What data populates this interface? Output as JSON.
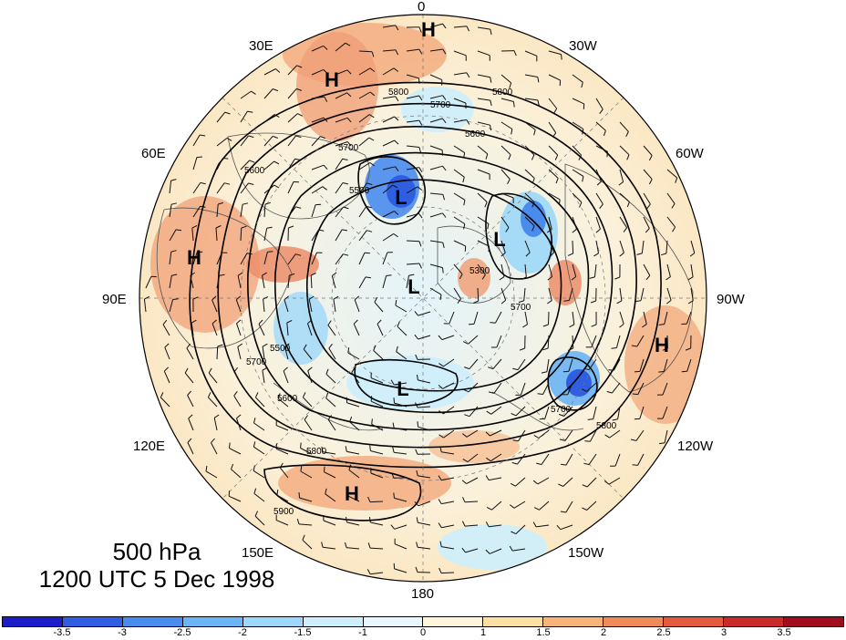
{
  "title": {
    "level": "500 hPa",
    "time": "1200 UTC 5 Dec 1998"
  },
  "longitude_labels": {
    "lon_0": "0",
    "lon_30w": "30W",
    "lon_60w": "60W",
    "lon_90w": "90W",
    "lon_120w": "120W",
    "lon_150w": "150W",
    "lon_180": "180",
    "lon_150e": "150E",
    "lon_120e": "120E",
    "lon_90e": "90E",
    "lon_60e": "60E",
    "lon_30e": "30E"
  },
  "pressure_centers": [
    {
      "label": "H"
    },
    {
      "label": "H"
    },
    {
      "label": "H"
    },
    {
      "label": "H"
    },
    {
      "label": "H"
    },
    {
      "label": "L"
    },
    {
      "label": "L"
    },
    {
      "label": "L"
    },
    {
      "label": "L"
    }
  ],
  "contour_labels": [
    "5800",
    "5700",
    "5800",
    "5600",
    "5500",
    "5600",
    "5700",
    "5300",
    "5500",
    "5600",
    "5700",
    "5800",
    "5900",
    "5800",
    "5700",
    "5700"
  ],
  "colorbar": {
    "colors": [
      "#1c1cc8",
      "#2f5fe0",
      "#4a8cee",
      "#6cb4f5",
      "#9dd8fa",
      "#cdeefc",
      "#e8f7fd",
      "#fdf6dc",
      "#fbdfa3",
      "#f6b47a",
      "#ef8a5a",
      "#e45a3e",
      "#c92a2a",
      "#a00d1f"
    ],
    "ticks": [
      "-3.5",
      "-3",
      "-2.5",
      "-2",
      "-1.5",
      "-1",
      "0",
      "1",
      "1.5",
      "2",
      "2.5",
      "3",
      "3.5"
    ]
  },
  "colors": {
    "land_outline": "#555555",
    "contour": "#000000"
  }
}
